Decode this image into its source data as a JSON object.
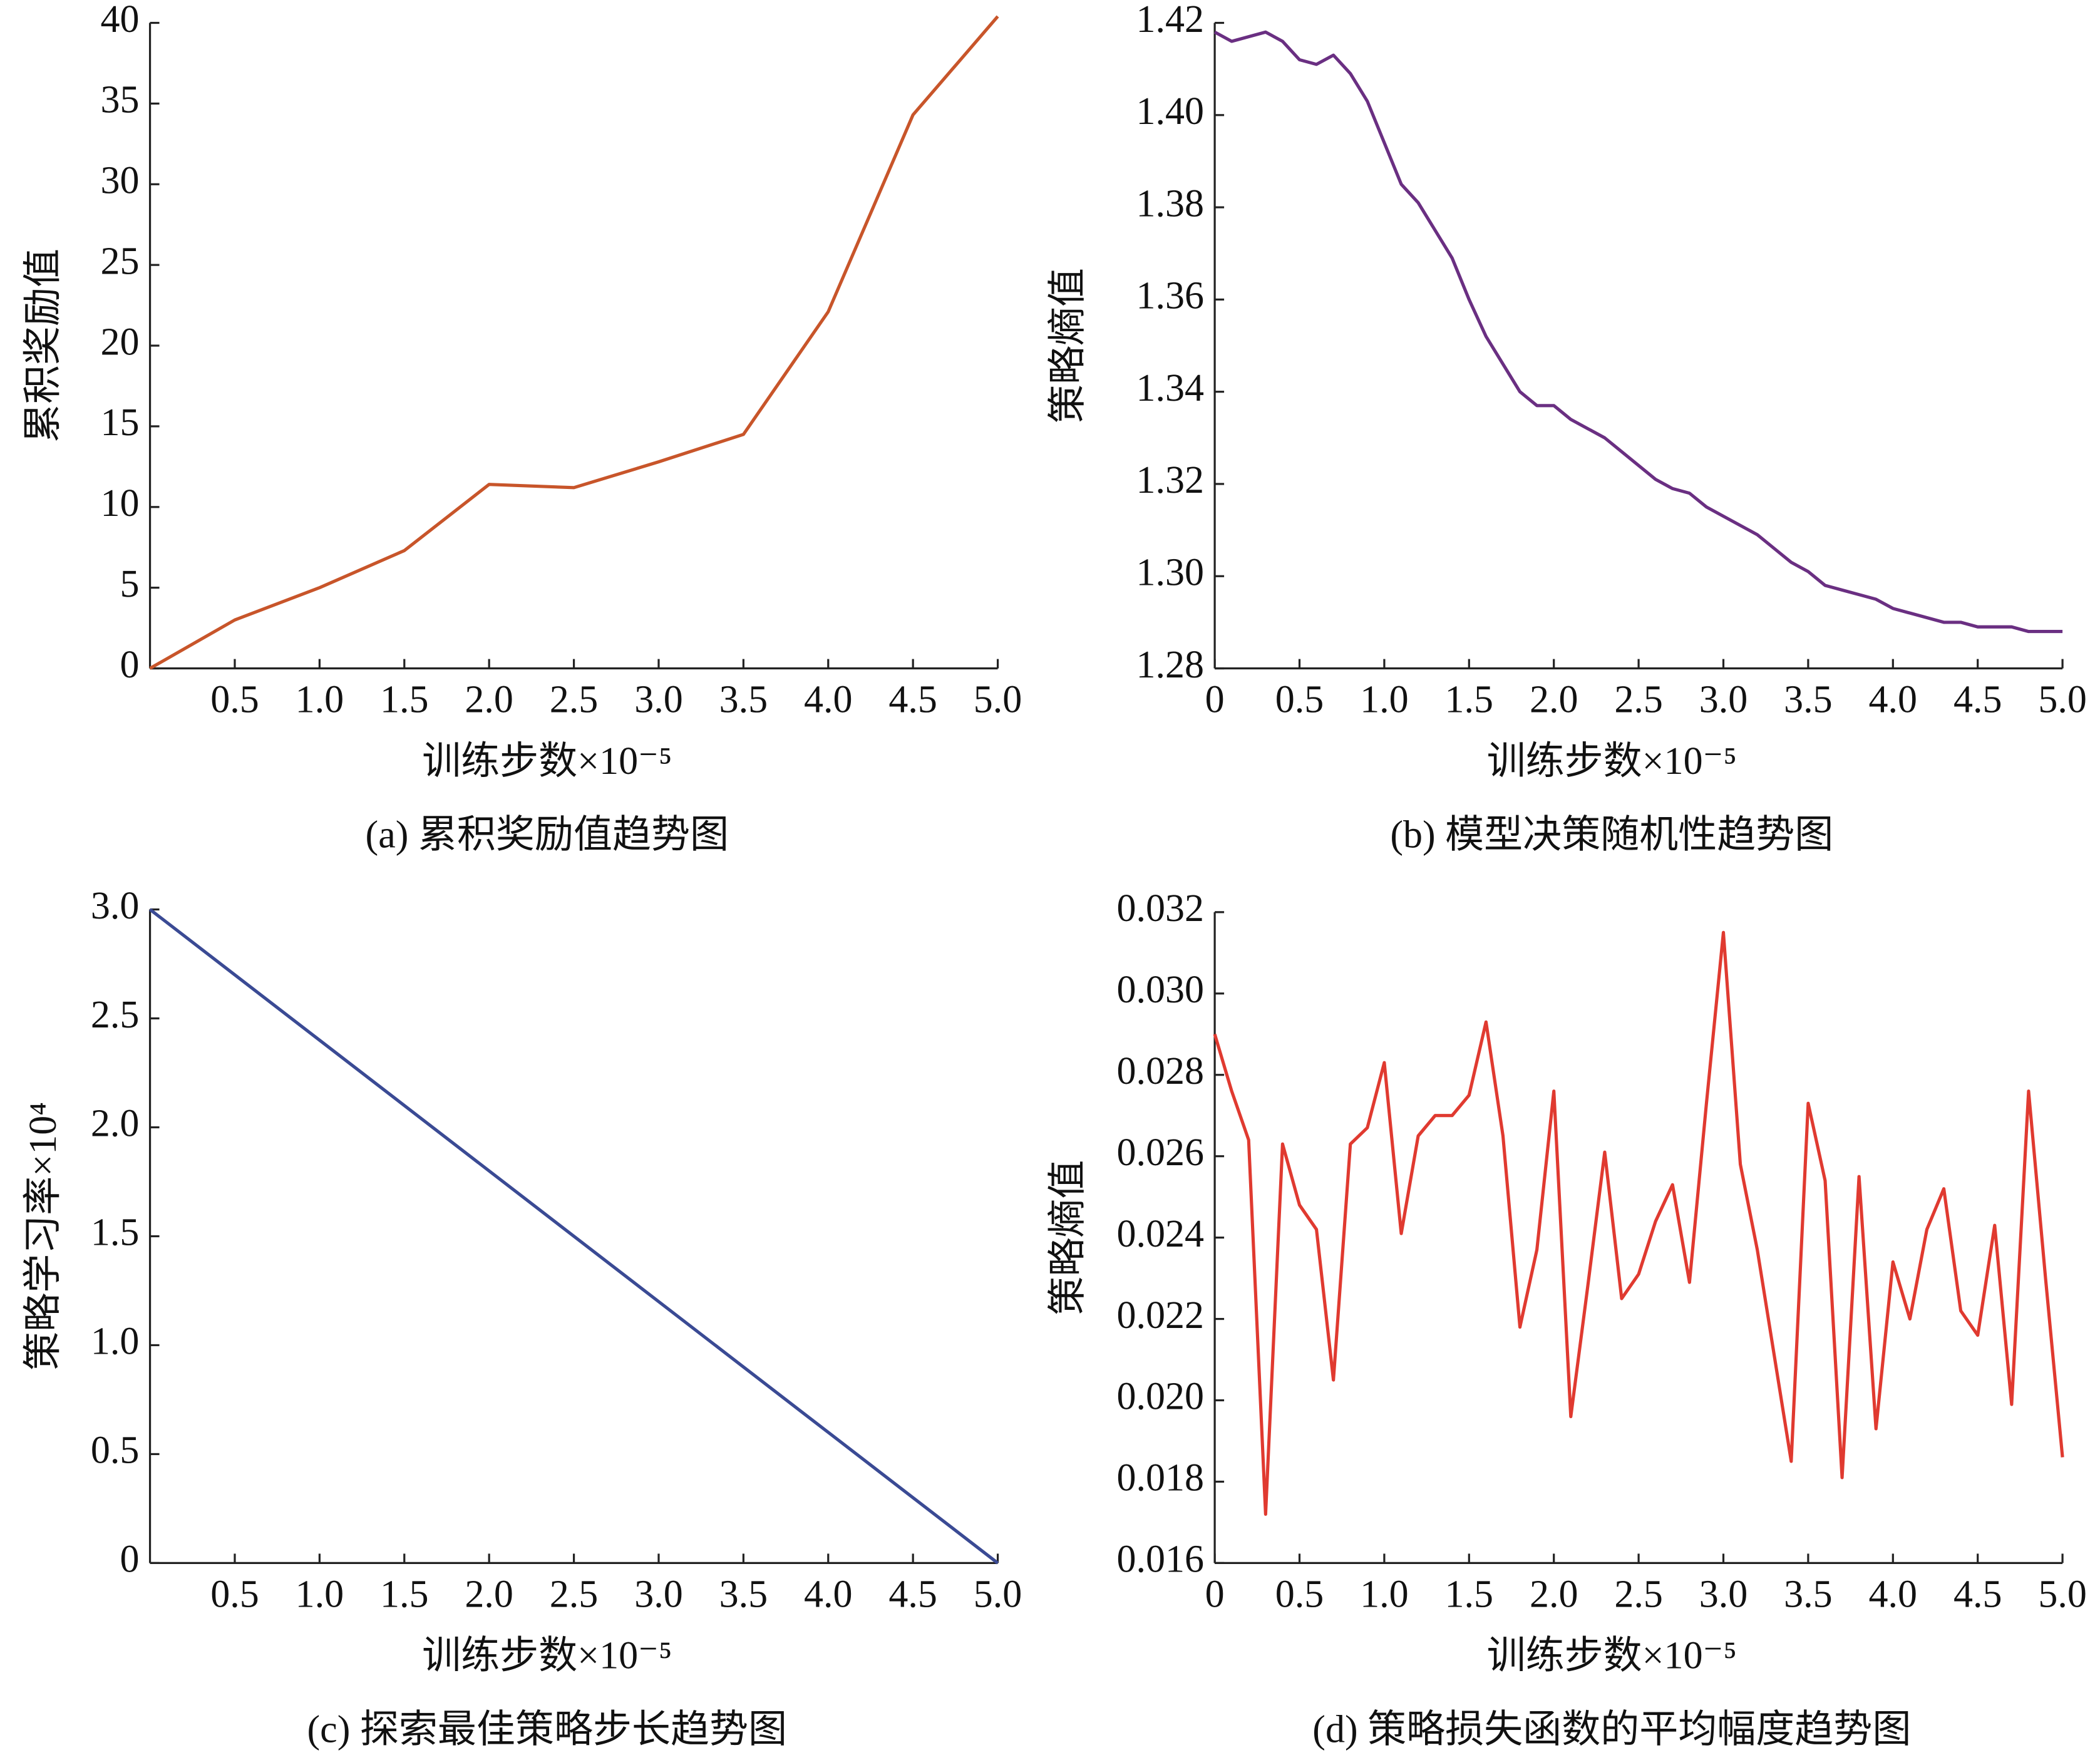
{
  "chart_data": [
    {
      "type": "line",
      "caption": "(a) 累积奖励值趋势图",
      "x_label": "训练步数×10⁻⁵",
      "y_label": "累积奖励值",
      "color": "#c8552a",
      "x": [
        0,
        0.5,
        1.0,
        1.5,
        2.0,
        2.5,
        3.0,
        3.5,
        4.0,
        4.5,
        5.0
      ],
      "values": [
        0,
        3,
        5,
        7.3,
        11.4,
        11.2,
        12.8,
        14.5,
        22.1,
        34.3,
        40.4
      ],
      "xlim": [
        0,
        5
      ],
      "xticks": [
        0.5,
        {
          "value": 1,
          "label": "1.0"
        },
        1.5,
        {
          "value": 2,
          "label": "2.0"
        },
        2.5,
        {
          "value": 3,
          "label": "3.0"
        },
        3.5,
        {
          "value": 4,
          "label": "4.0"
        },
        4.5,
        {
          "value": 5,
          "label": "5.0"
        }
      ],
      "ylim": [
        0,
        40
      ],
      "yticks": [
        0,
        5,
        10,
        15,
        20,
        25,
        30,
        35,
        40
      ]
    },
    {
      "type": "line",
      "caption": "(b) 模型决策随机性趋势图",
      "x_label": "训练步数×10⁻⁵",
      "y_label": "策略熵值",
      "color": "#6a2f82",
      "x": [
        0,
        0.1,
        0.2,
        0.3,
        0.4,
        0.5,
        0.6,
        0.7,
        0.8,
        0.9,
        1.0,
        1.1,
        1.2,
        1.3,
        1.4,
        1.5,
        1.6,
        1.7,
        1.8,
        1.9,
        2.0,
        2.1,
        2.2,
        2.3,
        2.4,
        2.5,
        2.6,
        2.7,
        2.8,
        2.9,
        3.0,
        3.1,
        3.2,
        3.3,
        3.4,
        3.5,
        3.6,
        3.7,
        3.8,
        3.9,
        4.0,
        4.1,
        4.2,
        4.3,
        4.4,
        4.5,
        4.6,
        4.7,
        4.8,
        4.9,
        5.0
      ],
      "values": [
        1.418,
        1.416,
        1.417,
        1.418,
        1.416,
        1.412,
        1.411,
        1.413,
        1.409,
        1.403,
        1.394,
        1.385,
        1.381,
        1.375,
        1.369,
        1.36,
        1.352,
        1.346,
        1.34,
        1.337,
        1.337,
        1.334,
        1.332,
        1.33,
        1.327,
        1.324,
        1.321,
        1.319,
        1.318,
        1.315,
        1.313,
        1.311,
        1.309,
        1.306,
        1.303,
        1.301,
        1.298,
        1.297,
        1.296,
        1.295,
        1.293,
        1.292,
        1.291,
        1.29,
        1.29,
        1.289,
        1.289,
        1.289,
        1.288,
        1.288,
        1.288
      ],
      "xlim": [
        0,
        5
      ],
      "xticks": [
        0,
        0.5,
        {
          "value": 1,
          "label": "1.0"
        },
        1.5,
        {
          "value": 2,
          "label": "2.0"
        },
        2.5,
        {
          "value": 3,
          "label": "3.0"
        },
        3.5,
        {
          "value": 4,
          "label": "4.0"
        },
        4.5,
        {
          "value": 5,
          "label": "5.0"
        }
      ],
      "ylim": [
        1.28,
        1.42
      ],
      "yticks": [
        1.28,
        {
          "value": 1.3,
          "label": "1.30"
        },
        1.32,
        1.34,
        1.36,
        1.38,
        {
          "value": 1.4,
          "label": "1.40"
        },
        1.42
      ]
    },
    {
      "type": "line",
      "caption": "(c) 探索最佳策略步长趋势图",
      "x_label": "训练步数×10⁻⁵",
      "y_label": "策略学习率×10⁴",
      "color": "#3a4a94",
      "x": [
        0,
        1,
        2,
        3,
        4,
        5
      ],
      "values": [
        3,
        2.4,
        1.8,
        1.2,
        0.6,
        0
      ],
      "xlim": [
        0,
        5
      ],
      "xticks": [
        0.5,
        {
          "value": 1,
          "label": "1.0"
        },
        1.5,
        {
          "value": 2,
          "label": "2.0"
        },
        2.5,
        {
          "value": 3,
          "label": "3.0"
        },
        3.5,
        {
          "value": 4,
          "label": "4.0"
        },
        4.5,
        {
          "value": 5,
          "label": "5.0"
        }
      ],
      "ylim": [
        0,
        3
      ],
      "yticks": [
        0,
        0.5,
        {
          "value": 1,
          "label": "1.0"
        },
        1.5,
        {
          "value": 2,
          "label": "2.0"
        },
        2.5,
        {
          "value": 3,
          "label": "3.0"
        }
      ]
    },
    {
      "type": "line",
      "caption": "(d) 策略损失函数的平均幅度趋势图",
      "x_label": "训练步数×10⁻⁵",
      "y_label": "策略熵值",
      "color": "#e03a30",
      "x": [
        0,
        0.1,
        0.2,
        0.3,
        0.4,
        0.5,
        0.6,
        0.7,
        0.8,
        0.9,
        1.0,
        1.1,
        1.2,
        1.3,
        1.4,
        1.5,
        1.6,
        1.7,
        1.8,
        1.9,
        2.0,
        2.1,
        2.2,
        2.3,
        2.4,
        2.5,
        2.6,
        2.7,
        2.8,
        2.9,
        3.0,
        3.1,
        3.2,
        3.3,
        3.4,
        3.5,
        3.6,
        3.7,
        3.8,
        3.9,
        4.0,
        4.1,
        4.2,
        4.3,
        4.4,
        4.5,
        4.6,
        4.7,
        4.8,
        4.9,
        5.0
      ],
      "values": [
        0.029,
        0.0276,
        0.0264,
        0.0172,
        0.0263,
        0.0248,
        0.0242,
        0.0205,
        0.0263,
        0.0267,
        0.0283,
        0.0241,
        0.0265,
        0.027,
        0.027,
        0.0275,
        0.0293,
        0.0265,
        0.0218,
        0.0237,
        0.0276,
        0.0196,
        0.0228,
        0.0261,
        0.0225,
        0.0231,
        0.0244,
        0.0253,
        0.0229,
        0.0273,
        0.0315,
        0.0258,
        0.0237,
        0.0211,
        0.0185,
        0.0273,
        0.0254,
        0.0181,
        0.0255,
        0.0193,
        0.0234,
        0.022,
        0.0242,
        0.0252,
        0.0222,
        0.0216,
        0.0243,
        0.0199,
        0.0276,
        0.023,
        0.0186
      ],
      "xlim": [
        0,
        5
      ],
      "xticks": [
        0,
        0.5,
        {
          "value": 1,
          "label": "1.0"
        },
        1.5,
        {
          "value": 2,
          "label": "2.0"
        },
        2.5,
        {
          "value": 3,
          "label": "3.0"
        },
        3.5,
        {
          "value": 4,
          "label": "4.0"
        },
        4.5,
        {
          "value": 5,
          "label": "5.0"
        }
      ],
      "ylim": [
        0.016,
        0.032
      ],
      "yticks": [
        0.016,
        0.018,
        {
          "value": 0.02,
          "label": "0.020"
        },
        0.022,
        0.024,
        0.026,
        0.028,
        {
          "value": 0.03,
          "label": "0.030"
        },
        0.032
      ]
    }
  ]
}
